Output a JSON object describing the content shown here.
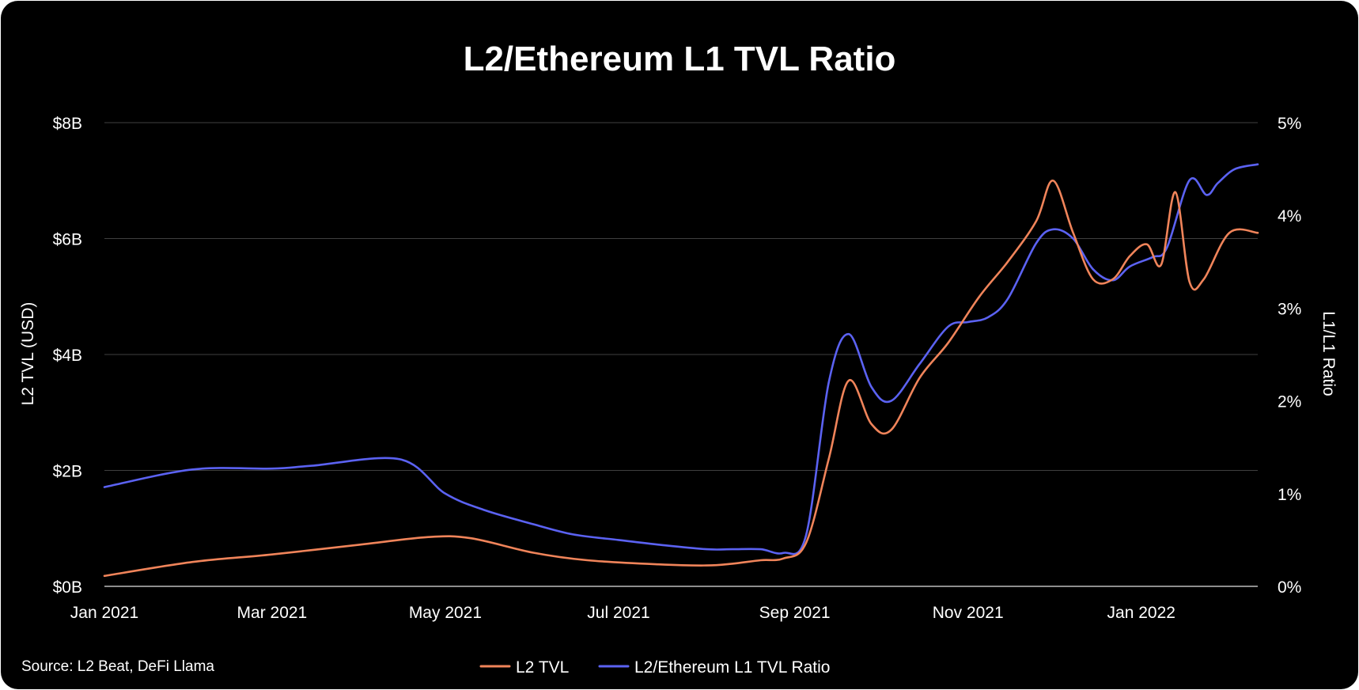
{
  "chart_data": {
    "type": "line",
    "title": "L2/Ethereum L1 TVL Ratio",
    "source": "Source: L2 Beat, DeFi Llama",
    "y_left": {
      "label": "L2 TVL (USD)",
      "ticks": [
        "$0B",
        "$2B",
        "$4B",
        "$6B",
        "$8B"
      ],
      "tick_values": [
        0,
        2,
        4,
        6,
        8
      ],
      "lim": [
        0,
        8
      ],
      "unit": "billions USD"
    },
    "y_right": {
      "label": "L1/L1 Ratio",
      "ticks": [
        "0%",
        "1%",
        "2%",
        "3%",
        "4%",
        "5%"
      ],
      "tick_values": [
        0,
        1,
        2,
        3,
        4,
        5
      ],
      "lim": [
        0,
        5
      ],
      "unit": "percent"
    },
    "x_axis": {
      "ticks": [
        "Jan 2021",
        "Mar 2021",
        "May 2021",
        "Jul 2021",
        "Sep 2021",
        "Nov 2021",
        "Jan 2022"
      ],
      "tick_dates": [
        "2021-01-01",
        "2021-03-01",
        "2021-05-01",
        "2021-07-01",
        "2021-09-01",
        "2021-11-01",
        "2022-01-01"
      ],
      "lim": [
        "2021-01-01",
        "2022-02-11"
      ]
    },
    "grid": true,
    "legend_position": "bottom-center",
    "series": [
      {
        "name": "L2 TVL",
        "axis": "left",
        "color": "#f0845a",
        "x": [
          "2021-01-01",
          "2021-02-01",
          "2021-03-01",
          "2021-04-01",
          "2021-04-25",
          "2021-05-10",
          "2021-06-01",
          "2021-06-20",
          "2021-07-15",
          "2021-08-01",
          "2021-08-10",
          "2021-08-20",
          "2021-08-28",
          "2021-09-05",
          "2021-09-13",
          "2021-09-20",
          "2021-09-28",
          "2021-10-05",
          "2021-10-15",
          "2021-10-25",
          "2021-11-05",
          "2021-11-15",
          "2021-11-25",
          "2021-12-01",
          "2021-12-08",
          "2021-12-15",
          "2021-12-22",
          "2021-12-28",
          "2022-01-03",
          "2022-01-08",
          "2022-01-13",
          "2022-01-18",
          "2022-01-23",
          "2022-02-01",
          "2022-02-11"
        ],
        "values": [
          0.18,
          0.42,
          0.55,
          0.72,
          0.85,
          0.83,
          0.58,
          0.45,
          0.38,
          0.36,
          0.39,
          0.45,
          0.48,
          0.75,
          2.2,
          3.55,
          2.8,
          2.7,
          3.6,
          4.2,
          5.0,
          5.6,
          6.3,
          7.0,
          6.1,
          5.3,
          5.3,
          5.7,
          5.9,
          5.55,
          6.8,
          5.25,
          5.3,
          6.1,
          6.1
        ],
        "unit": "billions USD"
      },
      {
        "name": "L2/Ethereum L1 TVL Ratio",
        "axis": "right",
        "color": "#5b62f2",
        "x": [
          "2021-01-01",
          "2021-02-01",
          "2021-03-01",
          "2021-03-15",
          "2021-04-15",
          "2021-05-01",
          "2021-05-15",
          "2021-06-01",
          "2021-06-15",
          "2021-07-01",
          "2021-07-15",
          "2021-08-01",
          "2021-08-10",
          "2021-08-20",
          "2021-08-28",
          "2021-09-05",
          "2021-09-13",
          "2021-09-20",
          "2021-09-28",
          "2021-10-05",
          "2021-10-15",
          "2021-10-25",
          "2021-11-01",
          "2021-11-08",
          "2021-11-15",
          "2021-11-25",
          "2021-12-01",
          "2021-12-08",
          "2021-12-15",
          "2021-12-22",
          "2021-12-28",
          "2022-01-05",
          "2022-01-10",
          "2022-01-18",
          "2022-01-24",
          "2022-01-28",
          "2022-02-03",
          "2022-02-11"
        ],
        "values": [
          1.07,
          1.26,
          1.27,
          1.3,
          1.37,
          1.0,
          0.82,
          0.67,
          0.56,
          0.5,
          0.45,
          0.4,
          0.4,
          0.4,
          0.36,
          0.55,
          2.2,
          2.72,
          2.15,
          2.0,
          2.4,
          2.8,
          2.85,
          2.9,
          3.1,
          3.7,
          3.85,
          3.75,
          3.42,
          3.3,
          3.45,
          3.55,
          3.65,
          4.38,
          4.22,
          4.35,
          4.5,
          4.55
        ],
        "unit": "percent"
      }
    ]
  }
}
